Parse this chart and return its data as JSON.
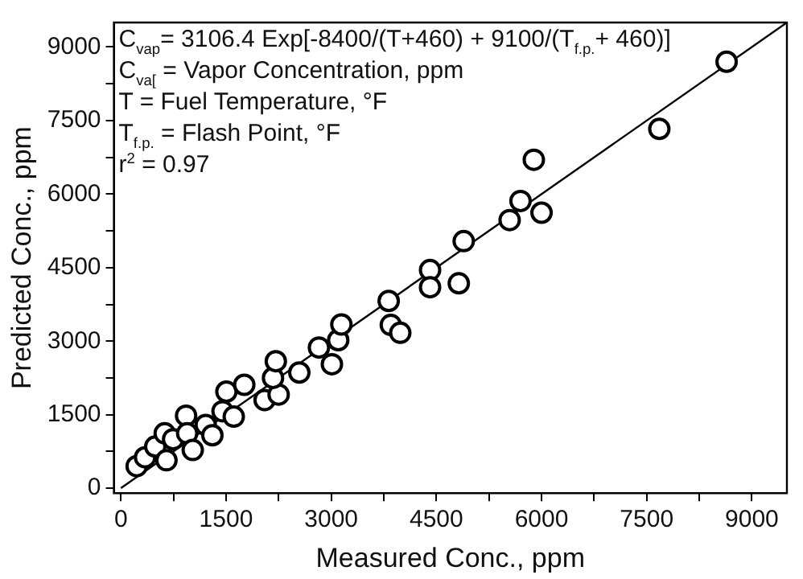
{
  "chart_data": {
    "type": "scatter",
    "xlabel": "Measured Conc., ppm",
    "ylabel": "Predicted Conc., ppm",
    "xlim": [
      -100,
      9500
    ],
    "ylim": [
      -100,
      9500
    ],
    "xticks": [
      0,
      {
        "value": 750,
        "label": null
      },
      1500,
      {
        "value": 2250,
        "label": null
      },
      3000,
      {
        "value": 3750,
        "label": null
      },
      4500,
      {
        "value": 5250,
        "label": null
      },
      6000,
      {
        "value": 6750,
        "label": null
      },
      7500,
      {
        "value": 8250,
        "label": null
      },
      9000
    ],
    "yticks": [
      0,
      {
        "value": 750,
        "label": null
      },
      1500,
      {
        "value": 2250,
        "label": null
      },
      3000,
      {
        "value": 3750,
        "label": null
      },
      4500,
      {
        "value": 5250,
        "label": null
      },
      6000,
      {
        "value": 6750,
        "label": null
      },
      7500,
      {
        "value": 8250,
        "label": null
      },
      9000
    ],
    "grid": false,
    "legend": false,
    "annotations": [
      "C$_{vap}$= 3106.4 Exp[-8400/(T+460) + 9100/(T$_{f.p.}$+ 460)]",
      "C$_{va[}$ = Vapor Concentration, ppm",
      "T = Fuel Temperature, °F",
      "T$_{f.p.}$ = Flash Point, °F",
      "r$^{2}$ = 0.97"
    ],
    "series": [
      {
        "color": "#000000",
        "marker": "circle",
        "x": [
          225,
          345,
          490,
          625,
          650,
          745,
          930,
          945,
          1025,
          1210,
          1305,
          1450,
          1505,
          1610,
          1760,
          2050,
          2250,
          2170,
          2210,
          2545,
          3010,
          2825,
          3100,
          3145,
          3820,
          3850,
          3985,
          4410,
          4410,
          4820,
          4890,
          5545,
          5700,
          6000,
          5890,
          7680,
          8640
        ],
        "values": [
          450,
          630,
          850,
          1120,
          570,
          1000,
          1480,
          1120,
          780,
          1290,
          1080,
          1570,
          1970,
          1460,
          2110,
          1800,
          1910,
          2250,
          2590,
          2360,
          2530,
          2870,
          3020,
          3340,
          3820,
          3330,
          3170,
          4450,
          4100,
          4180,
          5040,
          5470,
          5860,
          5620,
          6700,
          7330,
          8700
        ]
      },
      {
        "type": "line",
        "color": "#000000",
        "marker": "none",
        "line_style": "solid",
        "x": [
          0,
          9500
        ],
        "values": [
          0,
          9500
        ]
      }
    ]
  }
}
